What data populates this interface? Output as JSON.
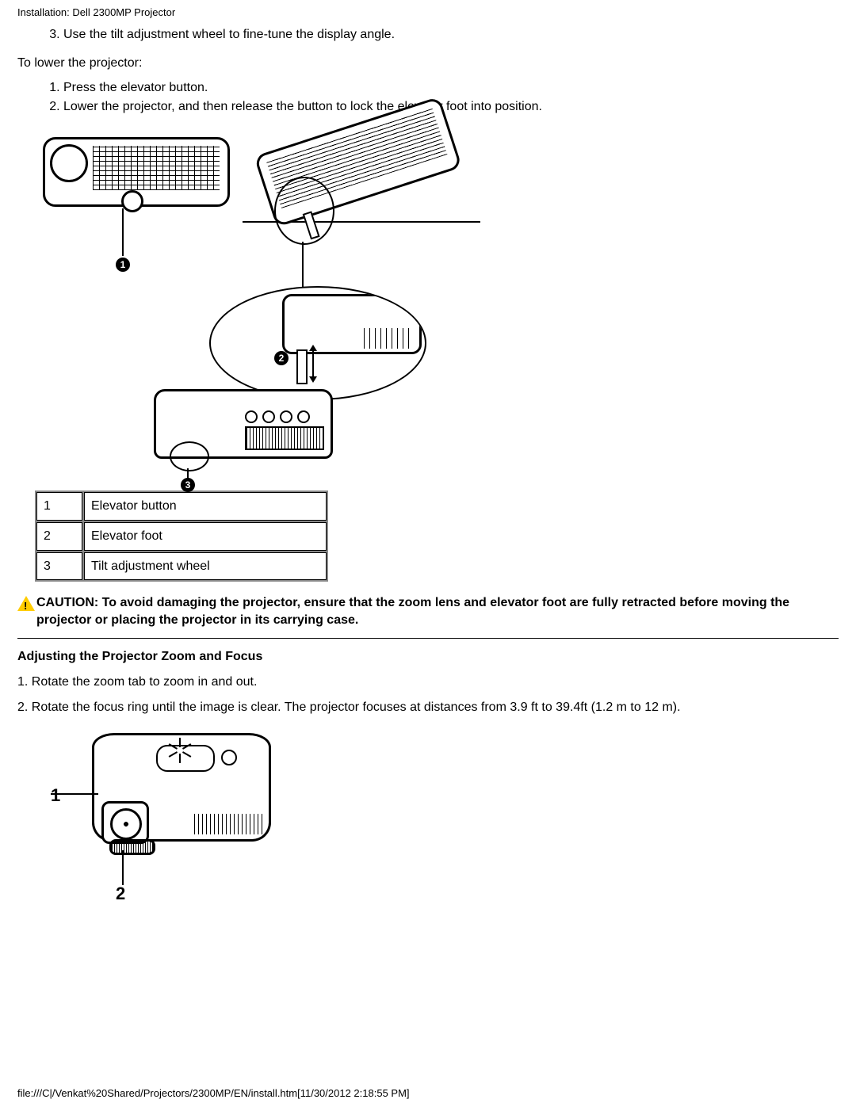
{
  "header": {
    "path": "Installation: Dell 2300MP Projector"
  },
  "step3": "Use the tilt adjustment wheel to fine-tune the display angle.",
  "lower_intro": "To lower the projector:",
  "lower_steps": {
    "s1": "Press the elevator button.",
    "s2": "Lower the projector, and then release the button to lock the elevator foot into position."
  },
  "callouts": {
    "c1": "1",
    "c2": "2",
    "c3": "3"
  },
  "parts_table": {
    "rows": {
      "r1": {
        "n": "1",
        "label": "Elevator button"
      },
      "r2": {
        "n": "2",
        "label": "Elevator foot"
      },
      "r3": {
        "n": "3",
        "label": "Tilt adjustment wheel"
      }
    }
  },
  "caution": {
    "text": "CAUTION: To avoid damaging the projector, ensure that the zoom lens and elevator foot are fully retracted before moving the projector or placing the projector in its carrying case."
  },
  "zoom_focus": {
    "heading": "Adjusting the Projector Zoom and Focus",
    "s1": "1. Rotate the zoom tab to zoom in and out.",
    "s2": "2. Rotate the focus ring until the image is clear. The projector focuses at distances from 3.9 ft to 39.4ft (1.2 m to 12 m).",
    "label1": "1",
    "label2": "2"
  },
  "footer": {
    "text": "file:///C|/Venkat%20Shared/Projectors/2300MP/EN/install.htm[11/30/2012 2:18:55 PM]"
  },
  "colors": {
    "text": "#000000",
    "background": "#ffffff",
    "warn_fill": "#ffcc00"
  }
}
